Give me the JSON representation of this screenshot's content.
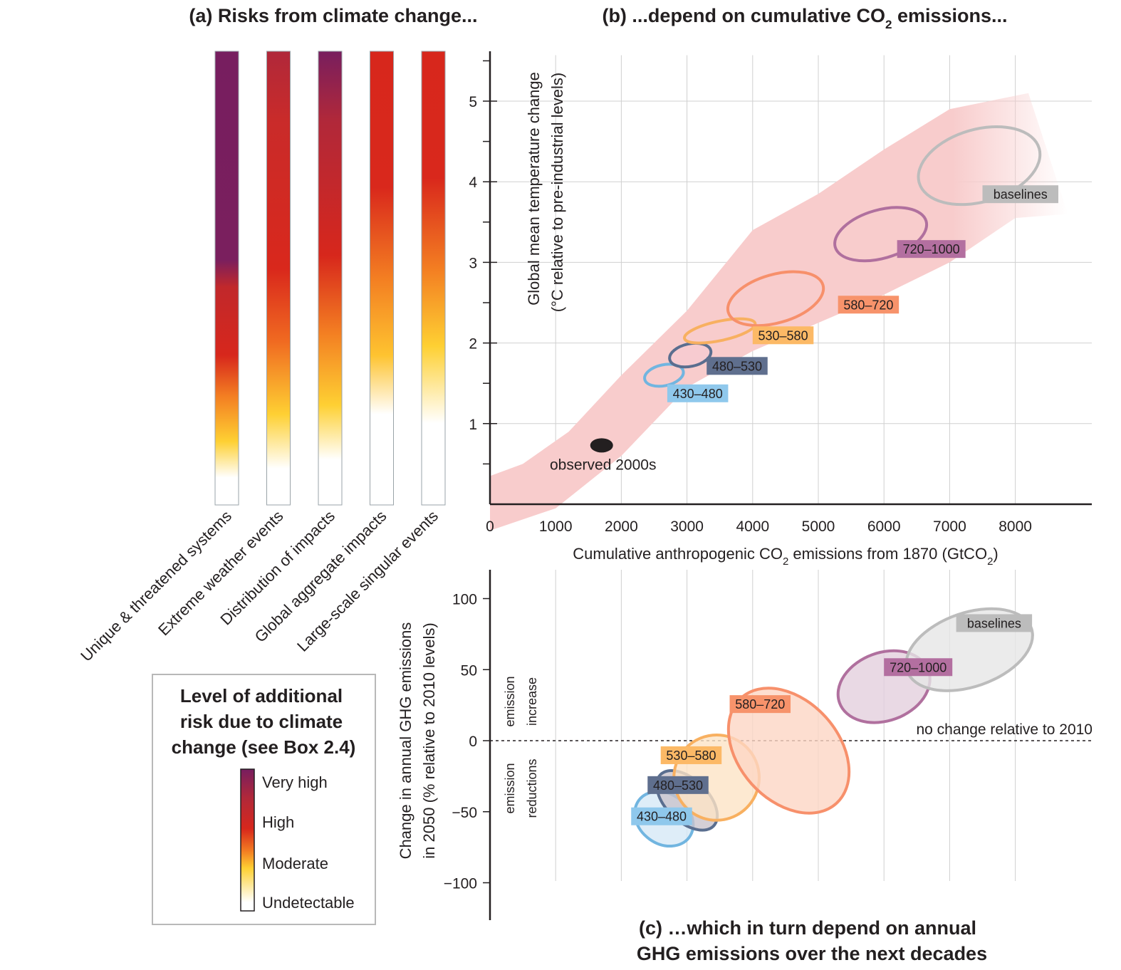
{
  "panel_a": {
    "title": "(a) Risks from climate change...",
    "categories": [
      {
        "label": "Unique & threatened systems",
        "stops": [
          [
            0,
            "#ffffff"
          ],
          [
            0.06,
            "#ffffff"
          ],
          [
            0.14,
            "#fed033"
          ],
          [
            0.24,
            "#f37e22"
          ],
          [
            0.33,
            "#d7271c"
          ],
          [
            0.48,
            "#c1282b"
          ],
          [
            0.54,
            "#7a1f5e"
          ],
          [
            1,
            "#771e5f"
          ]
        ]
      },
      {
        "label": "Extreme weather events",
        "stops": [
          [
            0,
            "#ffffff"
          ],
          [
            0.08,
            "#ffffff"
          ],
          [
            0.2,
            "#fed033"
          ],
          [
            0.36,
            "#f06a21"
          ],
          [
            0.52,
            "#d9281c"
          ],
          [
            0.85,
            "#c92b2a"
          ],
          [
            1,
            "#b0283a"
          ]
        ]
      },
      {
        "label": "Distribution of impacts",
        "stops": [
          [
            0,
            "#ffffff"
          ],
          [
            0.1,
            "#ffffff"
          ],
          [
            0.22,
            "#fed033"
          ],
          [
            0.38,
            "#f37e22"
          ],
          [
            0.55,
            "#d7271c"
          ],
          [
            0.85,
            "#b0283a"
          ],
          [
            1,
            "#781e5e"
          ]
        ]
      },
      {
        "label": "Global aggregate impacts",
        "stops": [
          [
            0,
            "#ffffff"
          ],
          [
            0.2,
            "#ffffff"
          ],
          [
            0.33,
            "#fec330"
          ],
          [
            0.5,
            "#f37e22"
          ],
          [
            0.7,
            "#d9281c"
          ],
          [
            1,
            "#d7271c"
          ]
        ]
      },
      {
        "label": "Large-scale singular events",
        "stops": [
          [
            0,
            "#ffffff"
          ],
          [
            0.18,
            "#ffffff"
          ],
          [
            0.35,
            "#fed033"
          ],
          [
            0.52,
            "#f37e22"
          ],
          [
            0.72,
            "#d9281c"
          ],
          [
            1,
            "#d7271c"
          ]
        ]
      }
    ]
  },
  "legend": {
    "title_lines": [
      "Level of additional",
      "risk due to climate",
      "change (see Box 2.4)"
    ],
    "levels": [
      "Very high",
      "High",
      "Moderate",
      "Undetectable"
    ]
  },
  "chart_data": [
    {
      "type": "scatter",
      "title": "(b) ...depend on cumulative CO2 emissions...",
      "title_parts": [
        "(b) ...depend on cumulative CO",
        "2",
        " emissions..."
      ],
      "xlabel": "Cumulative anthropogenic CO2 emissions from 1870 (GtCO2)",
      "xlabel_parts": [
        "Cumulative anthropogenic CO",
        "2",
        " emissions from 1870 (GtCO",
        "2",
        ")"
      ],
      "ylabel_lines": [
        "Global mean temperature change",
        "(°C relative to pre-industrial levels)"
      ],
      "xlim": [
        0,
        9300
      ],
      "ylim": [
        0,
        5.7
      ],
      "xticks": [
        0,
        1000,
        2000,
        3000,
        4000,
        5000,
        6000,
        7000,
        8000
      ],
      "yticks": [
        1,
        2,
        3,
        4,
        5
      ],
      "grid": true,
      "observed": {
        "label": "observed 2000s",
        "x": 1700,
        "y": 0.73
      },
      "series": [
        {
          "name": "430–480",
          "color": "#71b5e0",
          "label_color": "#8fc8ec",
          "text_color": "#231f20",
          "cx": 2650,
          "cy": 1.6,
          "rx": 300,
          "ry": 0.13
        },
        {
          "name": "480–530",
          "color": "#5a6e8f",
          "label_color": "#5f6f8e",
          "text_color": "#ffffff",
          "cx": 3050,
          "cy": 1.85,
          "rx": 320,
          "ry": 0.14
        },
        {
          "name": "530–580",
          "color": "#f8b060",
          "label_color": "#fcb966",
          "text_color": "#231f20",
          "cx": 3500,
          "cy": 2.15,
          "rx": 550,
          "ry": 0.12
        },
        {
          "name": "580–720",
          "color": "#f7906b",
          "label_color": "#f7936b",
          "text_color": "#231f20",
          "cx": 4350,
          "cy": 2.55,
          "rx": 750,
          "ry": 0.3
        },
        {
          "name": "720–1000",
          "color": "#b0709e",
          "label_color": "#b36fa0",
          "text_color": "#231f20",
          "cx": 5950,
          "cy": 3.35,
          "rx": 720,
          "ry": 0.3
        },
        {
          "name": "baselines",
          "color": "#bcbcbc",
          "label_color": "#bcbcbc",
          "text_color": "#231f20",
          "cx": 7450,
          "cy": 4.2,
          "rx": 950,
          "ry": 0.45
        }
      ]
    },
    {
      "type": "scatter",
      "title": "(c) …which in turn depend on annual GHG emissions over the next decades",
      "title_lines": [
        "(c) …which in turn depend on annual",
        "GHG emissions over the next decades"
      ],
      "ylabel_lines": [
        "Change in annual GHG emissions",
        "in 2050 (% relative to 2010 levels)"
      ],
      "ylim": [
        -125,
        120
      ],
      "yticks": [
        100,
        50,
        0,
        -50,
        -100
      ],
      "zero_line_label": "no change relative to 2010",
      "region_labels": {
        "increase": [
          "emission",
          "increase"
        ],
        "reductions": [
          "emission",
          "reductions"
        ]
      },
      "series": [
        {
          "name": "430–480",
          "cx": 2650,
          "cy": -55,
          "rx": 380,
          "ry": 11,
          "angle": -54,
          "fill": "#d6e9f6"
        },
        {
          "name": "480–530",
          "cx": 3000,
          "cy": -42,
          "rx": 320,
          "ry": 13,
          "angle": -46,
          "fill": "#c9c3cc"
        },
        {
          "name": "530–580",
          "cx": 3450,
          "cy": -26,
          "rx": 650,
          "ry": 15,
          "angle": -50,
          "fill": "#fde4c6"
        },
        {
          "name": "580–720",
          "cx": 4550,
          "cy": -7,
          "rx": 760,
          "ry": 25,
          "angle": -42,
          "fill": "#fcd6c4"
        },
        {
          "name": "720–1000",
          "cx": 6000,
          "cy": 38,
          "rx": 720,
          "ry": 12,
          "angle": -20,
          "fill": "#e3cfdd"
        },
        {
          "name": "baselines",
          "cx": 7300,
          "cy": 64,
          "rx": 1000,
          "ry": 13,
          "angle": -19,
          "fill": "#e6e6e6"
        }
      ],
      "label_positions": {
        "430–480": [
          2150,
          -53
        ],
        "480–530": [
          2400,
          -31
        ],
        "530–580": [
          2600,
          -10
        ],
        "580–720": [
          3650,
          26
        ],
        "720–1000": [
          6000,
          52
        ],
        "baselines": [
          7100,
          83
        ]
      }
    }
  ]
}
